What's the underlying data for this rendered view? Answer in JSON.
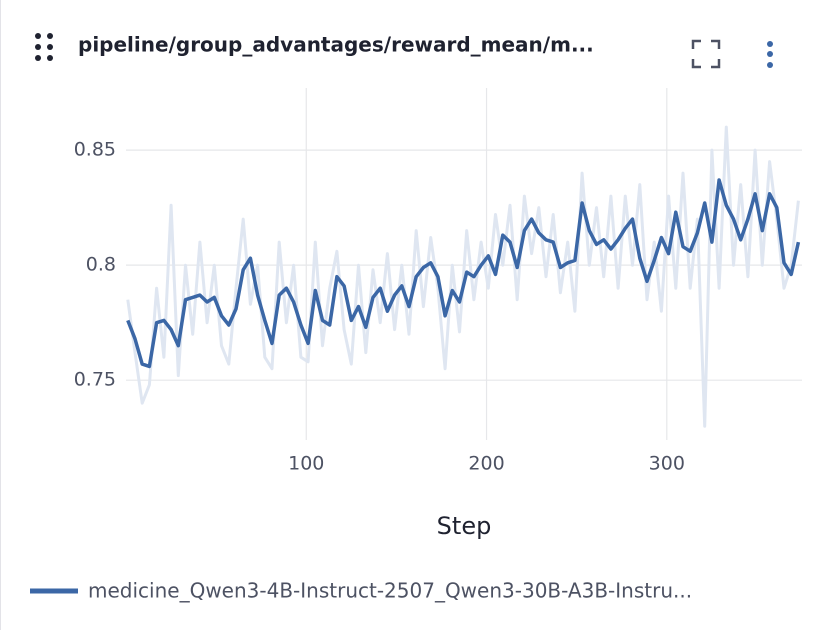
{
  "chart_data": {
    "type": "line",
    "title": "pipeline/group_advantages/reward_mean/m...",
    "x_label": "Step",
    "x": [
      1,
      5,
      9,
      13,
      17,
      21,
      25,
      29,
      33,
      37,
      41,
      45,
      49,
      53,
      57,
      61,
      65,
      69,
      73,
      77,
      81,
      85,
      89,
      93,
      97,
      101,
      105,
      109,
      113,
      117,
      121,
      125,
      129,
      133,
      137,
      141,
      145,
      149,
      153,
      157,
      161,
      165,
      169,
      173,
      177,
      181,
      185,
      189,
      193,
      197,
      201,
      205,
      209,
      213,
      217,
      221,
      225,
      229,
      233,
      237,
      241,
      245,
      249,
      253,
      257,
      261,
      265,
      269,
      273,
      277,
      281,
      285,
      289,
      293,
      297,
      301,
      305,
      309,
      313,
      317,
      321,
      325,
      329,
      333,
      337,
      341,
      345,
      349,
      353,
      357,
      361,
      365,
      369,
      373
    ],
    "background_series": {
      "color": "#dfe6f1",
      "values": [
        0.785,
        0.762,
        0.74,
        0.748,
        0.79,
        0.76,
        0.826,
        0.752,
        0.8,
        0.77,
        0.81,
        0.775,
        0.8,
        0.765,
        0.757,
        0.79,
        0.82,
        0.783,
        0.8,
        0.76,
        0.755,
        0.81,
        0.775,
        0.8,
        0.76,
        0.758,
        0.81,
        0.765,
        0.79,
        0.806,
        0.772,
        0.757,
        0.8,
        0.762,
        0.798,
        0.775,
        0.805,
        0.772,
        0.8,
        0.77,
        0.815,
        0.782,
        0.812,
        0.79,
        0.755,
        0.8,
        0.771,
        0.815,
        0.785,
        0.81,
        0.79,
        0.822,
        0.8,
        0.826,
        0.785,
        0.83,
        0.805,
        0.825,
        0.795,
        0.822,
        0.788,
        0.81,
        0.78,
        0.84,
        0.8,
        0.825,
        0.795,
        0.83,
        0.79,
        0.83,
        0.8,
        0.835,
        0.785,
        0.81,
        0.78,
        0.83,
        0.79,
        0.84,
        0.79,
        0.82,
        0.73,
        0.85,
        0.79,
        0.86,
        0.8,
        0.835,
        0.795,
        0.85,
        0.8,
        0.845,
        0.82,
        0.79,
        0.8,
        0.828
      ]
    },
    "series": [
      {
        "name": "medicine_Qwen3-4B-Instruct-2507_Qwen3-30B-A3B-Instru...",
        "color": "#3b67a6",
        "values": [
          0.776,
          0.768,
          0.757,
          0.756,
          0.775,
          0.776,
          0.772,
          0.765,
          0.785,
          0.786,
          0.787,
          0.784,
          0.786,
          0.778,
          0.774,
          0.781,
          0.798,
          0.803,
          0.787,
          0.776,
          0.766,
          0.787,
          0.79,
          0.784,
          0.774,
          0.766,
          0.789,
          0.776,
          0.774,
          0.795,
          0.791,
          0.776,
          0.782,
          0.773,
          0.786,
          0.79,
          0.78,
          0.787,
          0.791,
          0.782,
          0.795,
          0.799,
          0.801,
          0.795,
          0.778,
          0.789,
          0.784,
          0.797,
          0.795,
          0.8,
          0.804,
          0.796,
          0.813,
          0.81,
          0.799,
          0.815,
          0.82,
          0.814,
          0.811,
          0.81,
          0.799,
          0.801,
          0.802,
          0.827,
          0.815,
          0.809,
          0.811,
          0.807,
          0.811,
          0.816,
          0.82,
          0.803,
          0.793,
          0.802,
          0.812,
          0.805,
          0.823,
          0.808,
          0.806,
          0.814,
          0.827,
          0.81,
          0.837,
          0.826,
          0.82,
          0.811,
          0.82,
          0.831,
          0.815,
          0.831,
          0.825,
          0.801,
          0.796,
          0.81
        ]
      }
    ],
    "xlim": [
      0,
      375
    ],
    "xticks": [
      100,
      200,
      300
    ],
    "ylim": [
      0.724,
      0.877
    ],
    "yticks": [
      0.75,
      0.8,
      0.85
    ],
    "grid": true
  }
}
